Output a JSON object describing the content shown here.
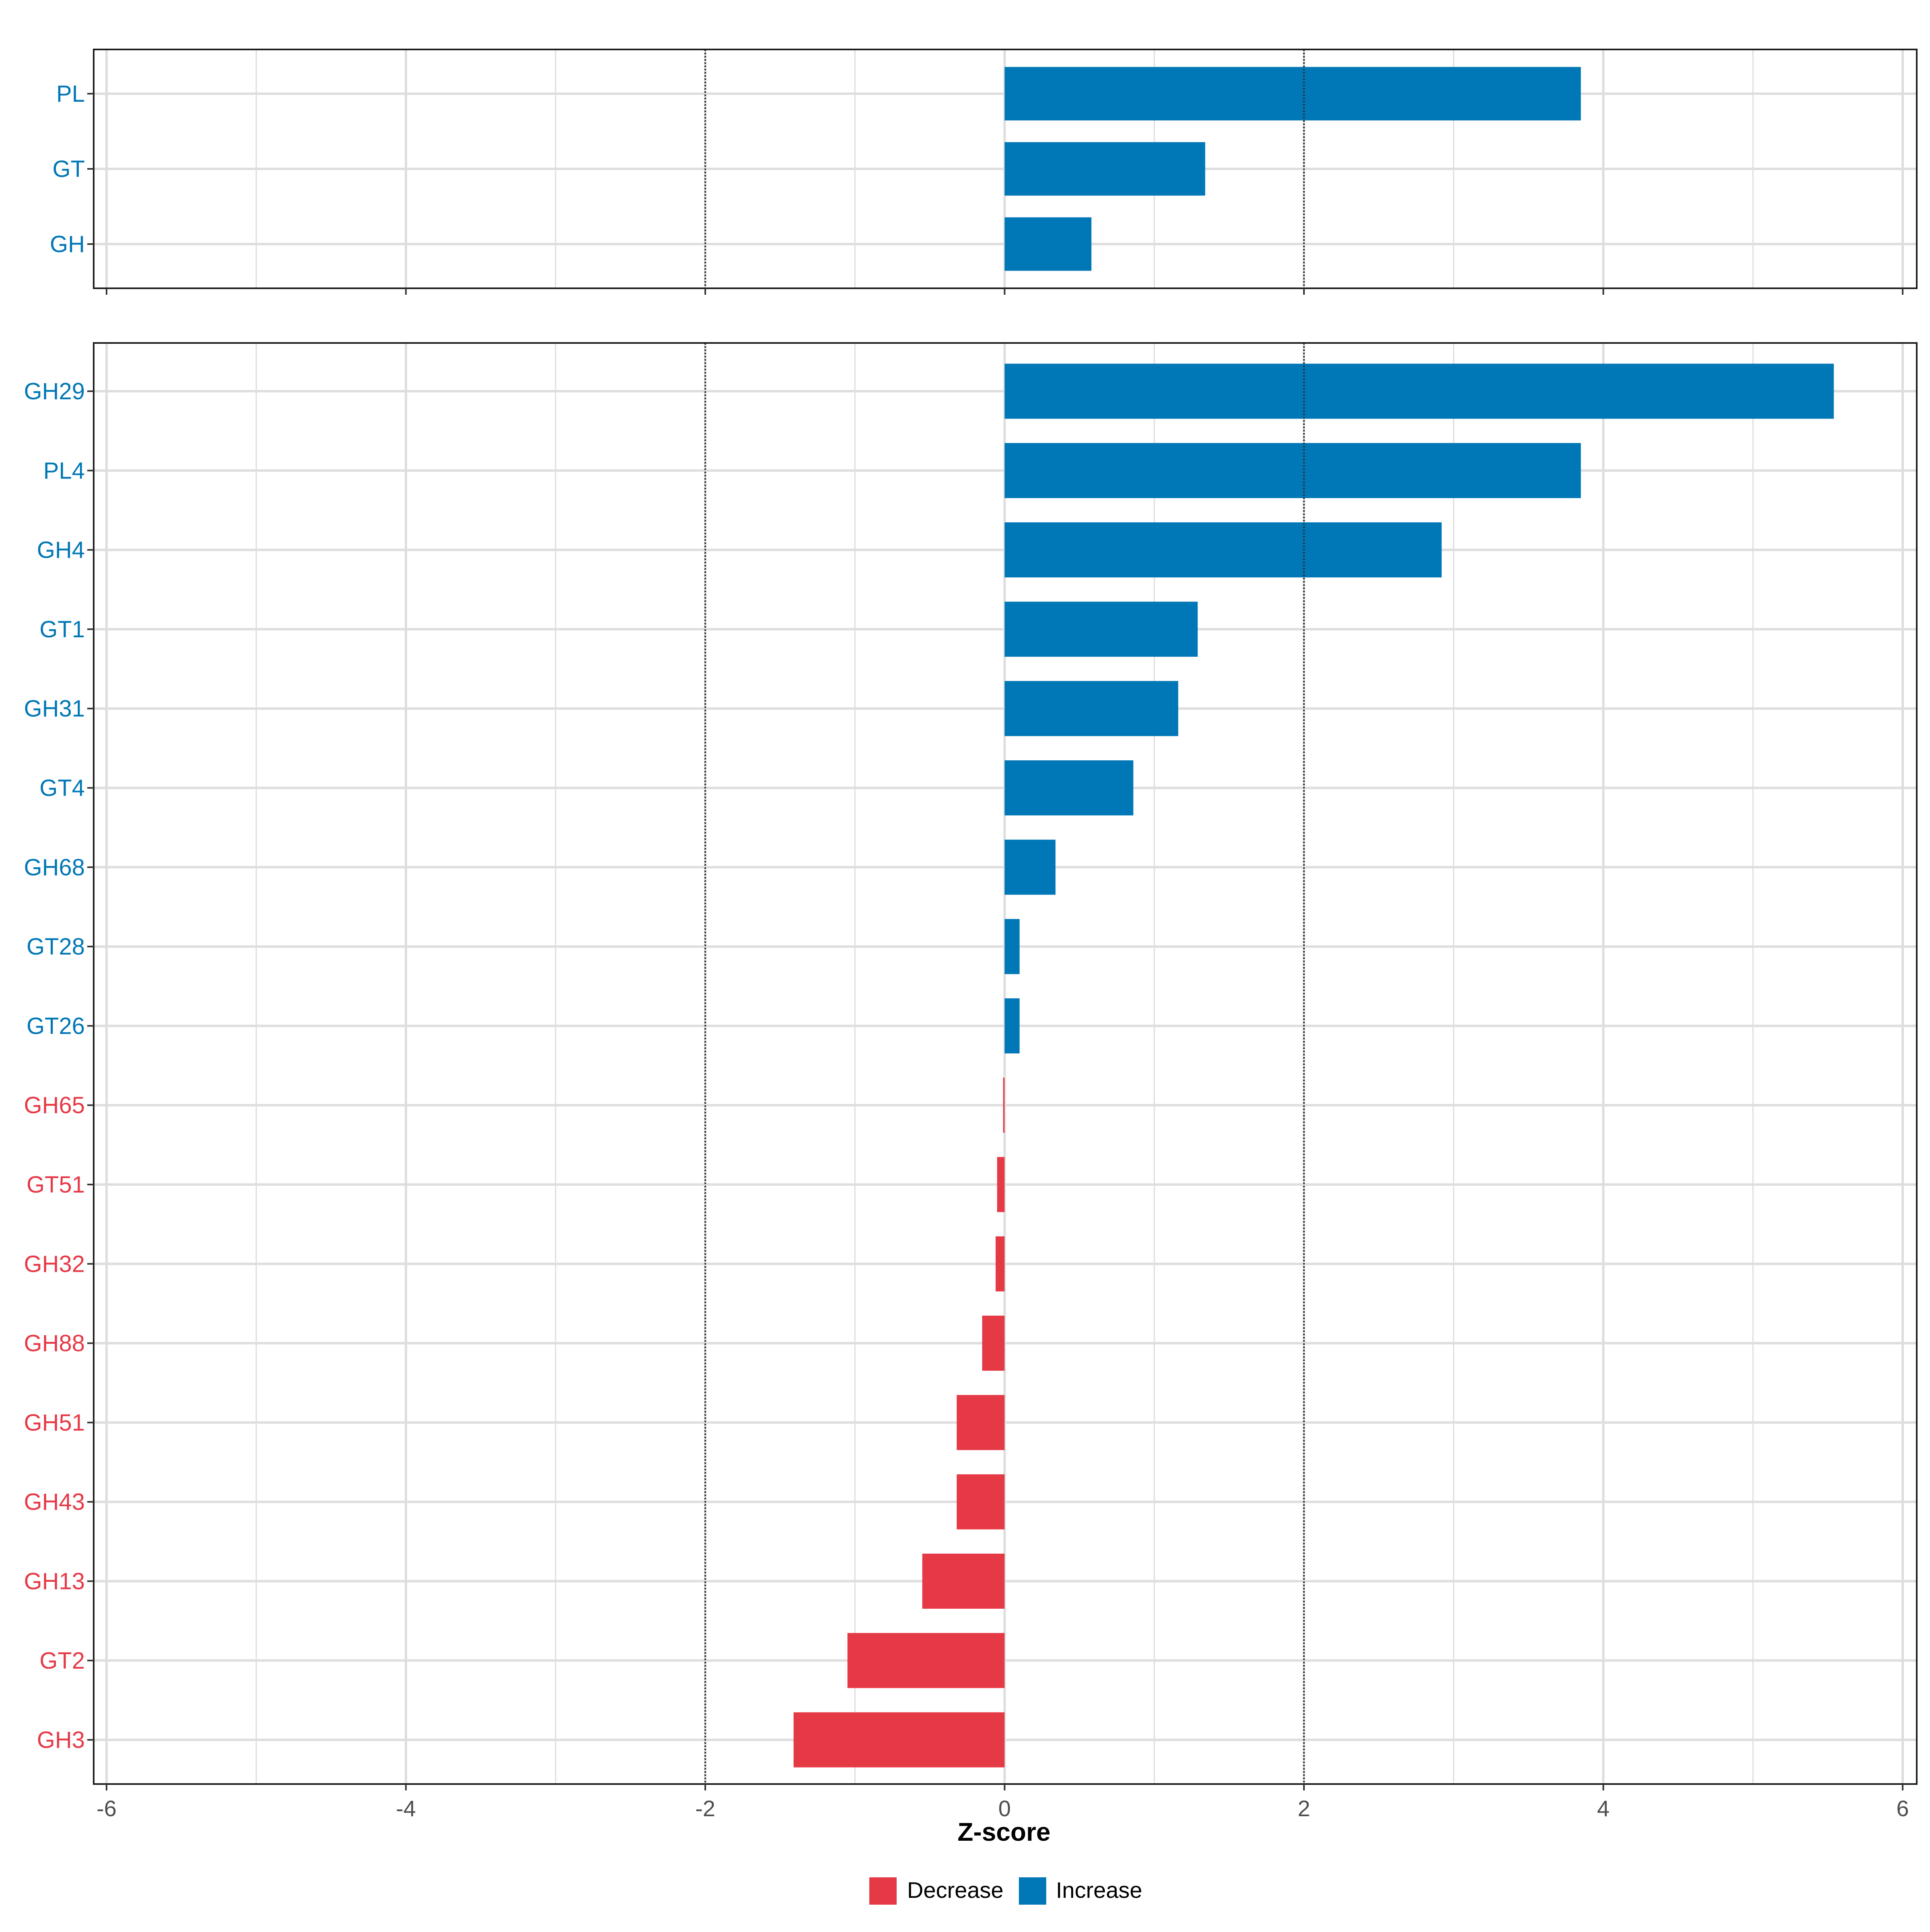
{
  "chart_data": [
    {
      "type": "bar",
      "orientation": "horizontal",
      "panel": "top",
      "categories": [
        "PL",
        "GT",
        "GH"
      ],
      "values": [
        3.85,
        1.34,
        0.58
      ],
      "xlim": [
        -6,
        6
      ],
      "xticks": [
        -6,
        -4,
        -2,
        0,
        2,
        4,
        6
      ],
      "reference_lines": [
        -2,
        2
      ],
      "grid": true
    },
    {
      "type": "bar",
      "orientation": "horizontal",
      "panel": "bottom",
      "categories": [
        "GH29",
        "PL4",
        "GH4",
        "GT1",
        "GH31",
        "GT4",
        "GH68",
        "GT28",
        "GT26",
        "GH65",
        "GT51",
        "GH32",
        "GH88",
        "GH51",
        "GH43",
        "GH13",
        "GT2",
        "GH3"
      ],
      "values": [
        5.54,
        3.85,
        2.92,
        1.29,
        1.16,
        0.86,
        0.34,
        0.1,
        0.1,
        -0.01,
        -0.05,
        -0.06,
        -0.15,
        -0.32,
        -0.32,
        -0.55,
        -1.05,
        -1.41
      ],
      "xlim": [
        -6,
        6
      ],
      "xticks": [
        -6,
        -4,
        -2,
        0,
        2,
        4,
        6
      ],
      "xlabel": "Z-score",
      "reference_lines": [
        -2,
        2
      ],
      "grid": true
    }
  ],
  "legend": {
    "items": [
      {
        "label": "Decrease",
        "color": "#E63946"
      },
      {
        "label": "Increase",
        "color": "#0077B6"
      }
    ]
  },
  "colors": {
    "increase": "#0077B6",
    "decrease": "#E63946",
    "grid": "#DEDEDE",
    "axis": "#1A1A1A",
    "tick_text": "#4D4D4D"
  }
}
